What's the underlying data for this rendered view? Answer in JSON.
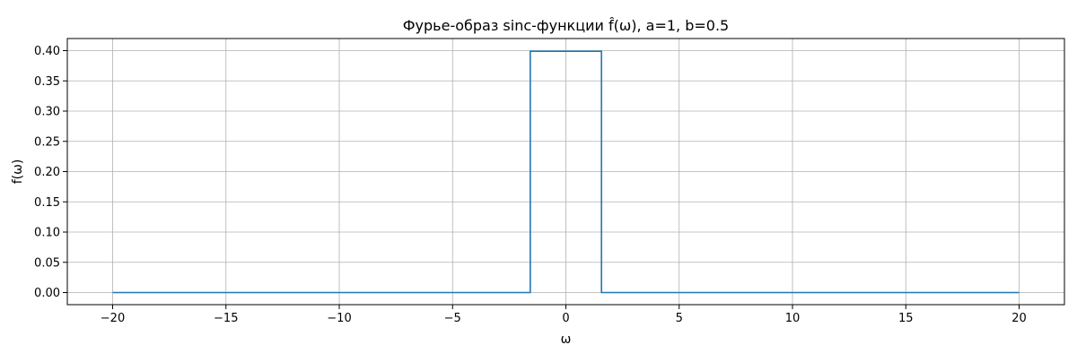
{
  "chart_data": {
    "type": "line",
    "title": "Фурье-образ sinc-функции f̂(ω), a=1, b=0.5",
    "xlabel": "ω",
    "ylabel": "f(ω)",
    "xlim": [
      -22,
      22
    ],
    "ylim": [
      -0.02,
      0.42
    ],
    "xticks": [
      -20,
      -15,
      -10,
      -5,
      0,
      5,
      10,
      15,
      20
    ],
    "xtick_labels": [
      "−20",
      "−15",
      "−10",
      "−5",
      "0",
      "5",
      "10",
      "15",
      "20"
    ],
    "yticks": [
      0.0,
      0.05,
      0.1,
      0.15,
      0.2,
      0.25,
      0.3,
      0.35,
      0.4
    ],
    "ytick_labels": [
      "0.00",
      "0.05",
      "0.10",
      "0.15",
      "0.20",
      "0.25",
      "0.30",
      "0.35",
      "0.40"
    ],
    "grid": true,
    "series": [
      {
        "color": "#1f77b4",
        "x": [
          -20,
          -1.571,
          -1.571,
          1.571,
          1.571,
          20
        ],
        "y": [
          0.0,
          0.0,
          0.399,
          0.399,
          0.0,
          0.0
        ]
      }
    ]
  }
}
